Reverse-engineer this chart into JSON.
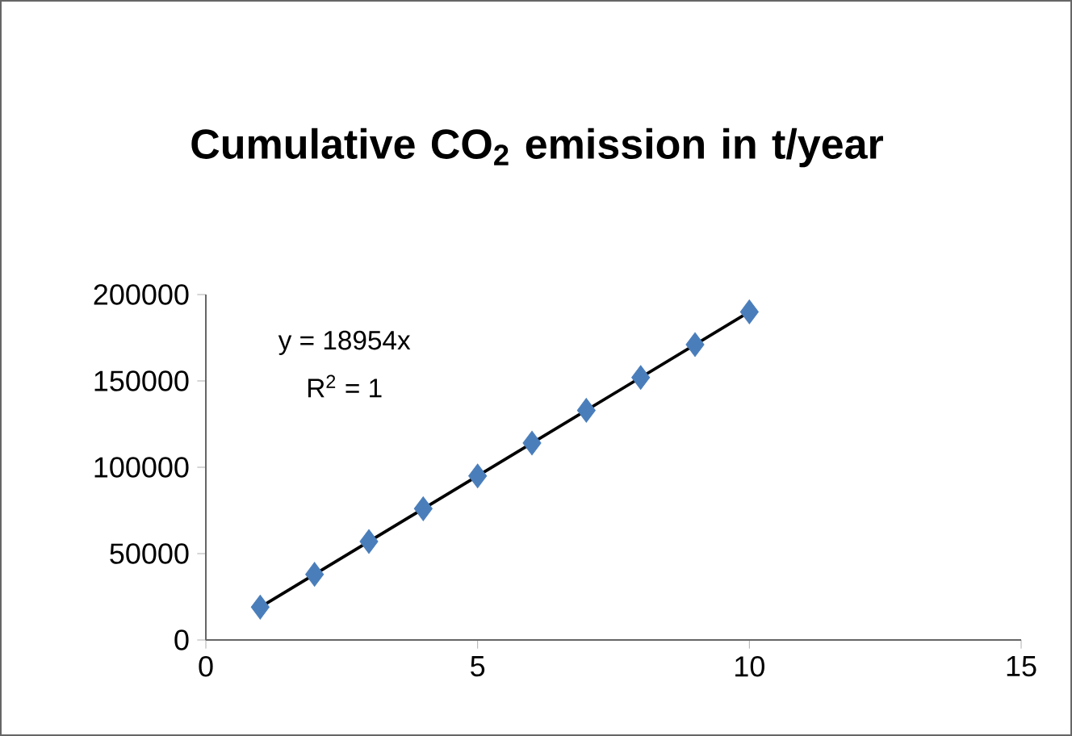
{
  "chart_data": {
    "type": "scatter",
    "title": "Cumulative CO$_{2}$ emission in t/year",
    "annotations": [
      "y = 18954x",
      "R$^{2}$ = 1"
    ],
    "series": [
      {
        "color": "#4a7ebb",
        "marker": "diamond",
        "x": [
          1,
          2,
          3,
          4,
          5,
          6,
          7,
          8,
          9,
          10
        ],
        "values": [
          19000,
          38000,
          57000,
          76000,
          95000,
          114000,
          133000,
          152000,
          171000,
          190000
        ]
      },
      {
        "type": "line",
        "color": "#000000",
        "x": [
          1,
          10
        ],
        "values": [
          19000,
          190000
        ]
      }
    ],
    "xlim": [
      0,
      15
    ],
    "xticks": [
      0,
      5,
      10,
      15
    ],
    "ylim": [
      0,
      200000
    ],
    "yticks": [
      0,
      50000,
      100000,
      150000,
      200000
    ]
  }
}
